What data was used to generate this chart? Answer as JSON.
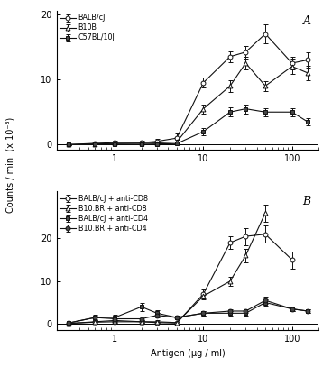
{
  "xvals": [
    0.3,
    0.6,
    1.0,
    2.0,
    3.0,
    5.0,
    10.0,
    20.0,
    30.0,
    50.0,
    100.0,
    150.0
  ],
  "panel_A": {
    "title": "A",
    "series": [
      {
        "label": "BALB/cJ",
        "marker": "o",
        "markerfill": "white",
        "color": "#111111",
        "y": [
          0.0,
          0.2,
          0.3,
          0.3,
          0.5,
          1.0,
          9.5,
          13.5,
          14.2,
          17.0,
          12.5,
          13.0
        ],
        "yerr": [
          0.05,
          0.2,
          0.25,
          0.25,
          0.35,
          0.7,
          0.8,
          0.8,
          1.0,
          1.5,
          1.0,
          1.2
        ]
      },
      {
        "label": "B10B",
        "marker": "^",
        "markerfill": "white",
        "color": "#111111",
        "y": [
          0.0,
          0.1,
          0.15,
          0.2,
          0.25,
          0.4,
          5.5,
          9.0,
          12.5,
          9.0,
          12.0,
          11.0
        ],
        "yerr": [
          0.05,
          0.1,
          0.15,
          0.15,
          0.2,
          0.4,
          0.7,
          0.9,
          1.0,
          0.8,
          1.2,
          1.1
        ]
      },
      {
        "label": "C57BL/10J",
        "marker": "s",
        "markerfill": "#444444",
        "color": "#111111",
        "y": [
          0.0,
          0.05,
          0.05,
          0.05,
          0.1,
          0.15,
          2.0,
          5.0,
          5.5,
          5.0,
          5.0,
          3.5
        ],
        "yerr": [
          0.03,
          0.05,
          0.05,
          0.05,
          0.08,
          0.15,
          0.5,
          0.7,
          0.7,
          0.6,
          0.6,
          0.5
        ]
      }
    ],
    "ylim": [
      -0.8,
      20.5
    ],
    "yticks": [
      0,
      10,
      20
    ],
    "yticklabels": [
      "0",
      "10",
      "20"
    ]
  },
  "panel_B": {
    "title": "B",
    "series": [
      {
        "label": "BALB/cJ + anti-CD8",
        "marker": "o",
        "markerfill": "white",
        "color": "#111111",
        "y": [
          0.1,
          0.4,
          0.5,
          0.5,
          0.3,
          0.2,
          7.0,
          19.0,
          20.5,
          21.0,
          15.0,
          null
        ],
        "yerr": [
          0.1,
          0.4,
          0.4,
          0.35,
          0.25,
          0.2,
          1.0,
          1.5,
          2.0,
          2.0,
          2.0,
          null
        ]
      },
      {
        "label": "B10.BR + anti-CD8",
        "marker": "^",
        "markerfill": "white",
        "color": "#111111",
        "y": [
          0.1,
          0.5,
          0.8,
          0.5,
          0.5,
          0.3,
          6.5,
          10.0,
          16.0,
          26.0,
          null,
          null
        ],
        "yerr": [
          0.1,
          0.35,
          0.45,
          0.35,
          0.35,
          0.25,
          0.8,
          1.0,
          1.5,
          2.0,
          null,
          null
        ]
      },
      {
        "label": "BALB/cJ + anti-CD4",
        "marker": "s",
        "markerfill": "#444444",
        "color": "#111111",
        "y": [
          0.2,
          1.5,
          1.5,
          4.0,
          2.5,
          1.5,
          2.5,
          2.5,
          2.5,
          5.0,
          3.5,
          3.0
        ],
        "yerr": [
          0.2,
          0.7,
          0.7,
          0.9,
          0.7,
          0.5,
          0.5,
          0.5,
          0.5,
          0.8,
          0.5,
          0.5
        ]
      },
      {
        "label": "B10.BR + anti-CD4",
        "marker": "o",
        "markerfill": "#444444",
        "color": "#111111",
        "y": [
          0.2,
          1.5,
          1.2,
          1.2,
          2.0,
          1.5,
          2.5,
          3.0,
          3.0,
          5.5,
          3.5,
          3.0
        ],
        "yerr": [
          0.2,
          0.5,
          0.5,
          0.5,
          0.5,
          0.5,
          0.5,
          0.5,
          0.5,
          0.8,
          0.5,
          0.5
        ]
      }
    ],
    "ylim": [
      -1.5,
      31
    ],
    "yticks": [
      0,
      10,
      20
    ],
    "yticklabels": [
      "0",
      "10",
      "20"
    ]
  },
  "xlabel": "Antigen (μg / ml)",
  "ylabel": "Counts / min  (x 10⁻³)",
  "bg_color": "#f0f0f0",
  "line_color": "#111111",
  "fontsize": 7,
  "legend_fontsize": 5.8
}
